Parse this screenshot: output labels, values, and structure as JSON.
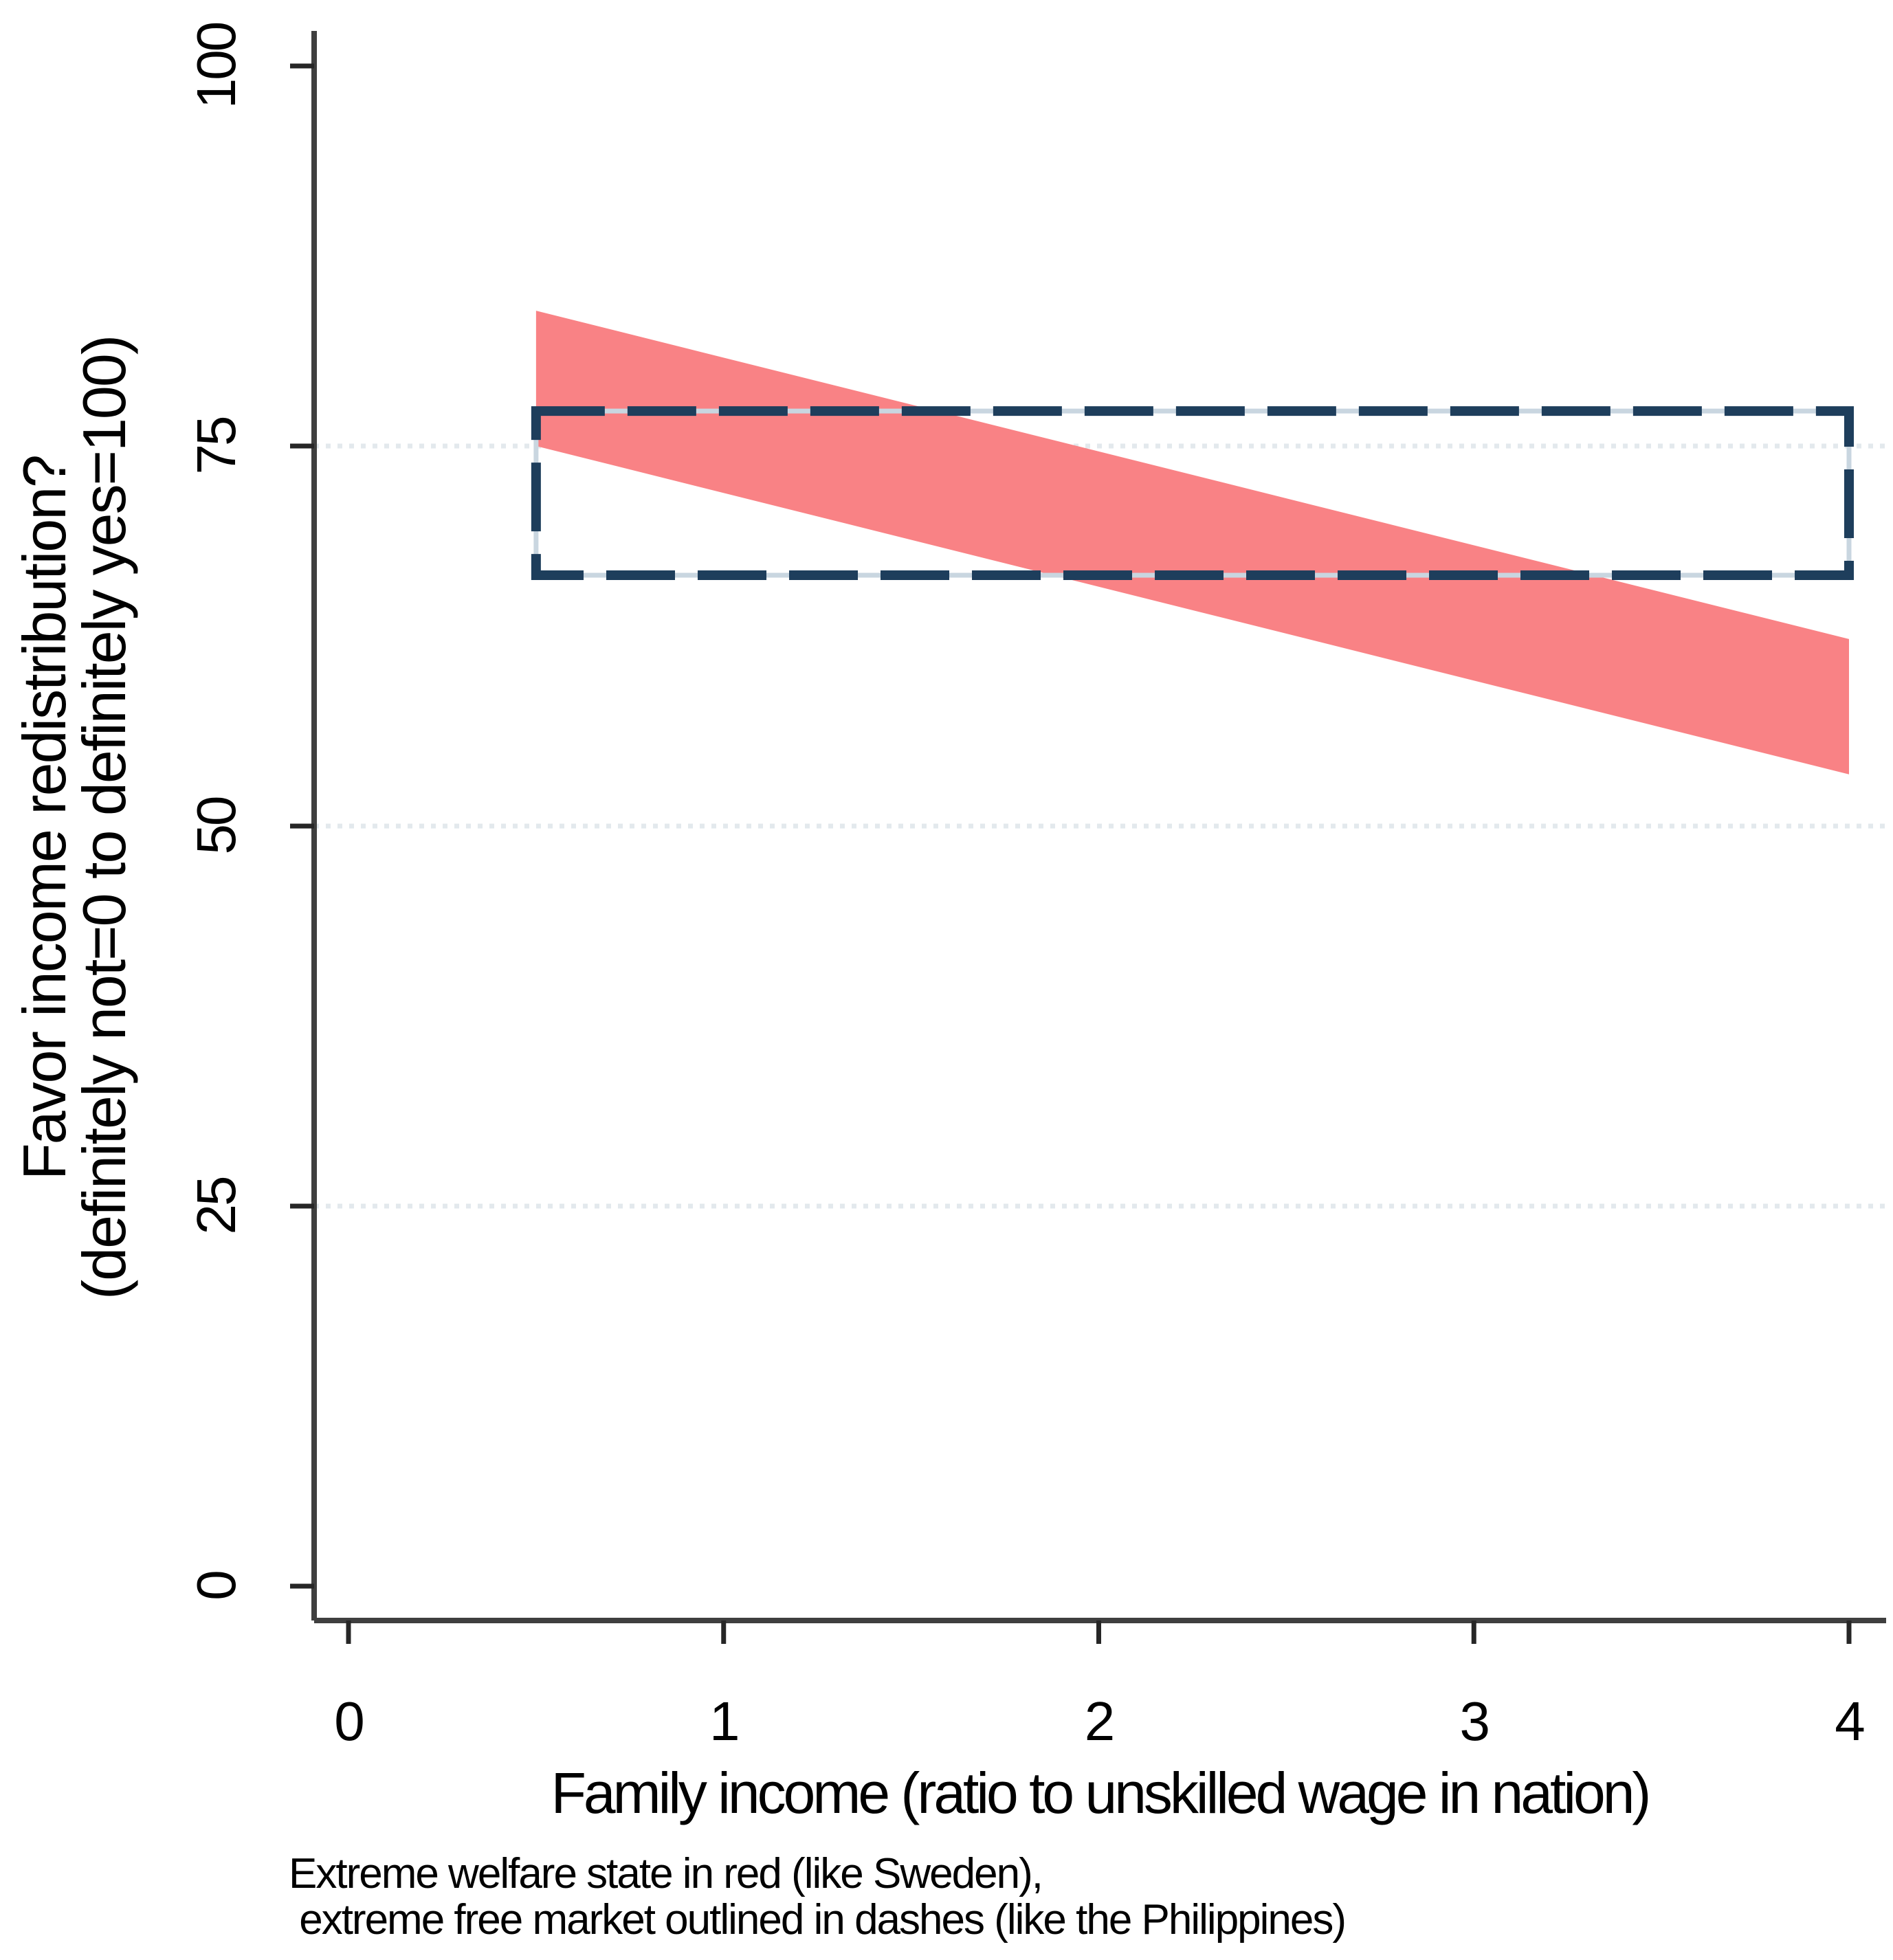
{
  "figure": {
    "background": "#ffffff"
  },
  "chart_data": {
    "type": "area",
    "title": "",
    "xlabel": "Family income (ratio to unskilled wage in nation)",
    "ylabel_lines": [
      "Favor income redistribution?",
      "(definitely not=0 to definitely yes=100)"
    ],
    "x_ticks": [
      0,
      1,
      2,
      3,
      4
    ],
    "y_ticks": [
      0,
      25,
      50,
      75,
      100
    ],
    "xlim": [
      0,
      4.1
    ],
    "ylim": [
      0,
      102
    ],
    "gridlines_y": [
      25,
      50,
      75
    ],
    "grid": "horizontal-dotted",
    "legend_position": "none",
    "colors": {
      "welfare_band": "#f98285",
      "free_market_dash": "#1e3e5c",
      "free_market_underlay": "#c9d6e0",
      "gridline": "#e3e9ed",
      "axis": "#3f3f3f",
      "tick": "#262626",
      "text": "#000000"
    },
    "series": [
      {
        "name": "Extreme welfare state (like Sweden)",
        "style": "filled-band",
        "color": "#f98285",
        "x": [
          0.5,
          4
        ],
        "upper": [
          83.9,
          62.3
        ],
        "lower": [
          75.0,
          53.4
        ]
      },
      {
        "name": "Extreme free market (like the Philippines)",
        "style": "dashed-outline-box",
        "color": "#1e3e5c",
        "x": [
          0.5,
          4
        ],
        "upper": 77.3,
        "lower": 66.5
      }
    ],
    "caption_lines": [
      "Extreme welfare state in red (like Sweden),",
      " extreme free market outlined in dashes (like the Philippines)"
    ]
  }
}
